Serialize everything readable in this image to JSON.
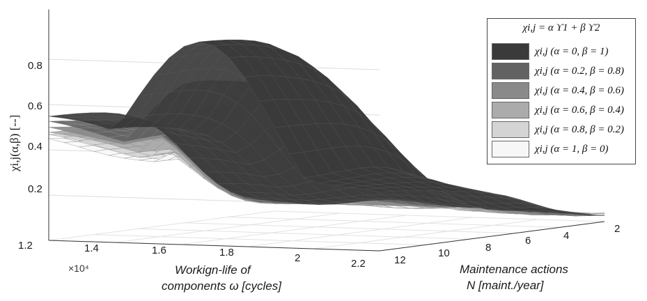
{
  "chart_data": {
    "type": "surface",
    "title": "",
    "ylabel": "χi,j(α,β) [--]",
    "xlabel_line1": "Workign-life  of",
    "xlabel_line2": "components ω [cycles]",
    "nlabel_line1": "Maintenance actions",
    "nlabel_line2": "N [maint./year]",
    "x_multiplier": "×10⁴",
    "omega_ticks": [
      "1.2",
      "1.4",
      "1.6",
      "1.8",
      "2",
      "2.2"
    ],
    "n_ticks": [
      "12",
      "10",
      "8",
      "6",
      "4",
      "2"
    ],
    "z_ticks": [
      "0.2",
      "0.4",
      "0.6",
      "0.8"
    ],
    "omega_range": [
      1.2,
      2.2
    ],
    "n_range": [
      2,
      12
    ],
    "z_range": [
      0,
      0.9
    ],
    "grid": true,
    "legend_position": "top-right",
    "legend_title": "χi,j = α ϒ1 + β ϒ2",
    "series": [
      {
        "name": "χi,j (α = 0, β = 1)",
        "alpha": 0,
        "beta": 1,
        "color": "#3a3a3a",
        "peak": 0.9,
        "plateau": 0.55
      },
      {
        "name": "χi,j (α = 0.2, β = 0.8)",
        "alpha": 0.2,
        "beta": 0.8,
        "color": "#626262",
        "peak": 0.72,
        "plateau": 0.52
      },
      {
        "name": "χi,j (α = 0.4, β = 0.6)",
        "alpha": 0.4,
        "beta": 0.6,
        "color": "#8a8a8a",
        "peak": 0.62,
        "plateau": 0.5
      },
      {
        "name": "χi,j (α = 0.6, β = 0.4)",
        "alpha": 0.6,
        "beta": 0.4,
        "color": "#ababab",
        "peak": 0.55,
        "plateau": 0.48
      },
      {
        "name": "χi,j (α = 0.8, β = 0.2)",
        "alpha": 0.8,
        "beta": 0.2,
        "color": "#d4d4d4",
        "peak": 0.48,
        "plateau": 0.46
      },
      {
        "name": "χi,j (α = 1, β = 0)",
        "alpha": 1,
        "beta": 0,
        "color": "#f7f7f7",
        "peak": 0.42,
        "plateau": 0.44
      }
    ]
  }
}
